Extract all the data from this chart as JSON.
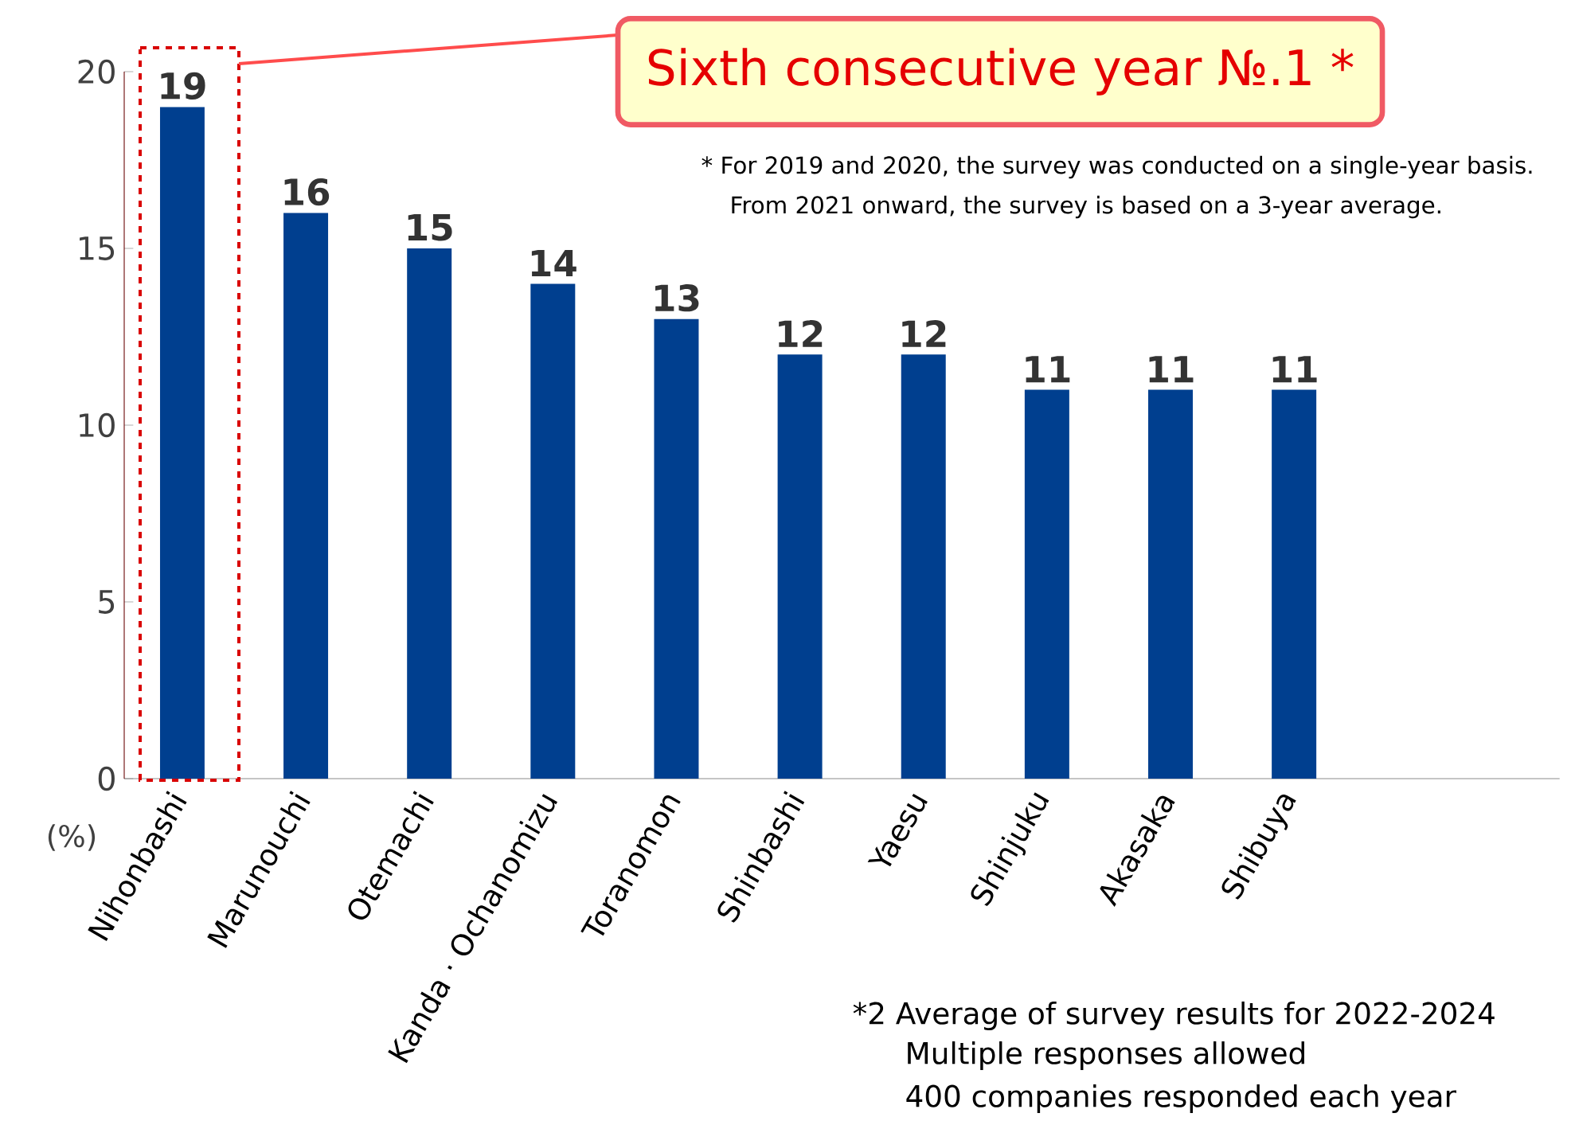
{
  "chart_data": {
    "type": "bar",
    "categories": [
      "Nihonbashi",
      "Marunouchi",
      "Otemachi",
      "Kanda · Ochanomizu",
      "Toranomon",
      "Shinbashi",
      "Yaesu",
      "Shinjuku",
      "Akasaka",
      "Shibuya"
    ],
    "values": [
      19,
      16,
      15,
      14,
      13,
      12,
      12,
      11,
      11,
      11
    ],
    "color": "#003f8f",
    "ylim": [
      0,
      20
    ],
    "yticks": [
      0,
      5,
      10,
      15,
      20
    ],
    "data_labels": true,
    "grid": false,
    "annotations": [
      "Sixth consecutive year №.1 *",
      "* For 2019 and 2020, the survey was conducted on a single-year basis.",
      "From 2021 onward, the survey is based on a 3-year average.",
      "*2  Average of survey results for 2022-2024",
      "Multiple responses allowed",
      "400 companies responded each year",
      "(%)"
    ]
  }
}
